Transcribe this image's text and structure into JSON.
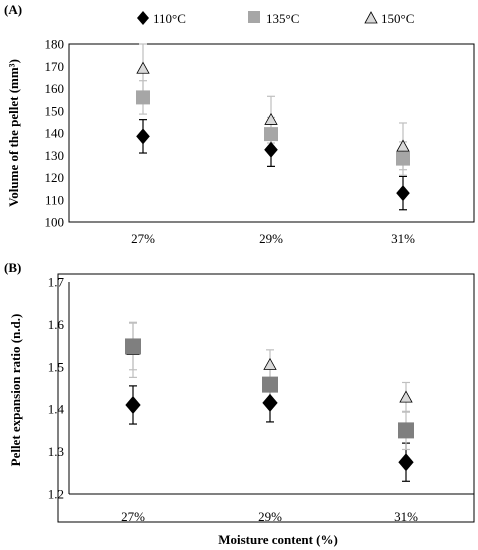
{
  "colors": {
    "110": "#000000",
    "135": "#a6a6a6",
    "150": "#d9d9d9",
    "135_panelB": "#7f7f7f",
    "axis": "#000000",
    "errbar_black": "#000000",
    "errbar_grey": "#bfbfbf"
  },
  "legend": {
    "items": [
      {
        "label": "110°C",
        "marker": "diamond",
        "color": "#000000"
      },
      {
        "label": "135°C",
        "marker": "square",
        "color": "#a6a6a6"
      },
      {
        "label": "150°C",
        "marker": "triangle",
        "color": "#d9d9d9"
      }
    ]
  },
  "chart_data": [
    {
      "type": "scatter",
      "panel_label": "(A)",
      "ylabel": "Volume of the pellet (mm³)",
      "xlabel": "",
      "categories": [
        "27%",
        "29%",
        "31%"
      ],
      "ylim": [
        100,
        180
      ],
      "yticks": [
        "100",
        "110",
        "120",
        "130",
        "140",
        "150",
        "160",
        "170",
        "180"
      ],
      "grid": false,
      "series": [
        {
          "name": "110°C",
          "marker": "diamond",
          "values": [
            138.5,
            132.5,
            113
          ],
          "errors": [
            7.5,
            7.5,
            7.5
          ]
        },
        {
          "name": "135°C",
          "marker": "square",
          "values": [
            156,
            139.5,
            128.5
          ],
          "errors": [
            7.5,
            7.5,
            7.5
          ]
        },
        {
          "name": "150°C",
          "marker": "triangle",
          "values": [
            169,
            146,
            134
          ],
          "errors": [
            11,
            10.5,
            10.5
          ]
        }
      ]
    },
    {
      "type": "scatter",
      "panel_label": "(B)",
      "ylabel": "Pellet expansion ratio (n.d.)",
      "xlabel": "Moisture content (%)",
      "categories": [
        "27%",
        "29%",
        "31%"
      ],
      "ylim": [
        1.2,
        1.7
      ],
      "yticks": [
        "1.2",
        "1.3",
        "1.4",
        "1.5",
        "1.6",
        "1.7"
      ],
      "grid": false,
      "series": [
        {
          "name": "110°C",
          "marker": "diamond",
          "values": [
            1.41,
            1.415,
            1.275
          ],
          "errors": [
            0.045,
            0.045,
            0.045
          ]
        },
        {
          "name": "135°C",
          "marker": "square",
          "values": [
            1.548,
            1.458,
            1.35
          ],
          "errors": [
            0.055,
            0.045,
            0.045
          ]
        },
        {
          "name": "150°C",
          "marker": "triangle",
          "values": [
            1.54,
            1.505,
            1.428
          ],
          "errors": [
            0.065,
            0.035,
            0.035
          ]
        }
      ]
    }
  ]
}
